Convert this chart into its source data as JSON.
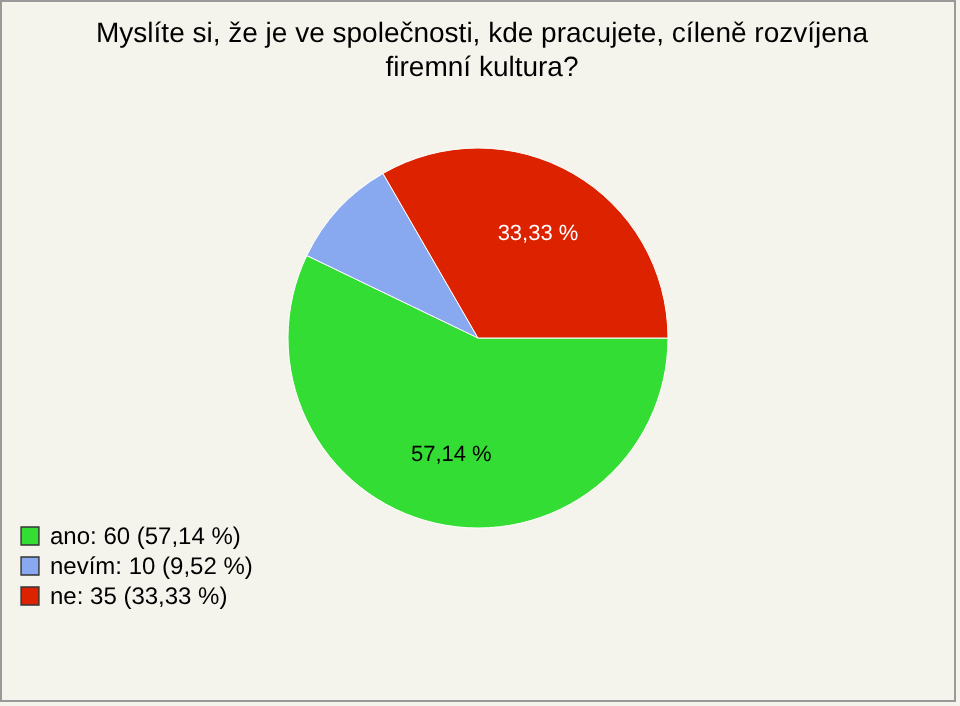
{
  "chart_data": {
    "type": "pie",
    "title": "Myslíte si, že je ve společnosti, kde pracujete, cíleně rozvíjena firemní kultura?",
    "categories": [
      "ano: 60 (57,14 %)",
      "nevím: 10 (9,52 %)",
      "ne: 35 (33,33 %)"
    ],
    "values": [
      57.14,
      9.52,
      33.33
    ],
    "colors": [
      "#33dd33",
      "#88a8f0",
      "#dd2200"
    ],
    "value_labels": [
      "57,14 %",
      null,
      "33,33 %"
    ],
    "legend": "bottom left"
  }
}
